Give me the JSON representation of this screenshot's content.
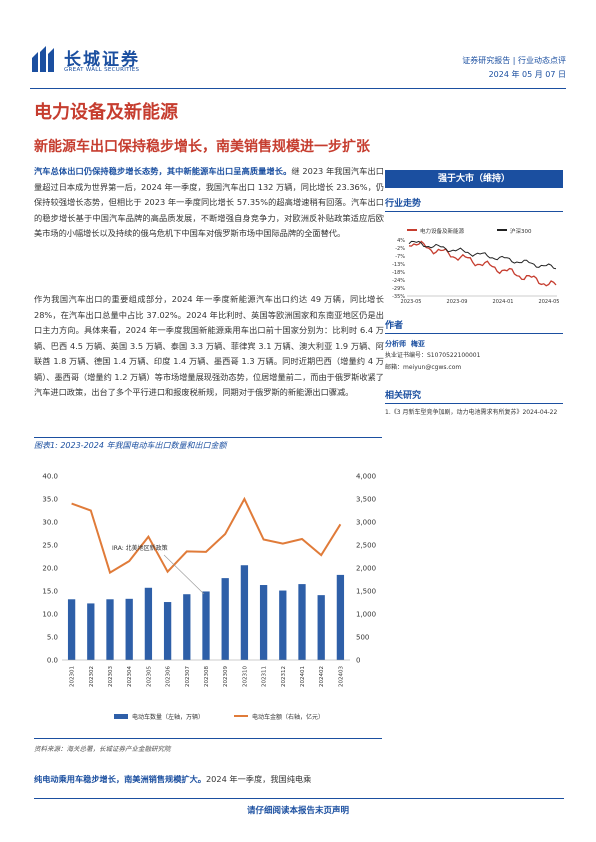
{
  "header": {
    "company_cn": "长城证券",
    "company_en": "GREAT WALL SECURITIES",
    "report_type": "证券研究报告 | 行业动态点评",
    "date": "2024 年 05 月 07 日"
  },
  "sector_title": "电力设备及新能源",
  "subtitle": "新能源车出口保持稳步增长，南美销售规模进一步扩张",
  "para1": {
    "lead": "汽车总体出口仍保持稳步增长态势，其中新能源车出口呈高质量增长。",
    "text": "继 2023 年我国汽车出口量超过日本成为世界第一后，2024 年一季度，我国汽车出口 132 万辆，同比增长 23.36%，仍保持较强增长态势，但相比于 2023 年一季度同比增长 57.35%的超高增速稍有回落。汽车出口的稳步增长基于中国汽车品牌的高品质发展，不断增强自身竞争力，对欧洲反补贴政策适应后欧美市场的小幅增长以及持续的俄乌危机下中国车对俄罗斯市场中国际品牌的全面替代。"
  },
  "para2": {
    "text": "作为我国汽车出口的重要组成部分，2024 年一季度新能源汽车出口约达 49 万辆，同比增长 28%，在汽车出口总量中占比 37.02%。2024 年比利时、英国等欧洲国家和东南亚地区仍是出口主力方向。具体来看，2024 年一季度我国新能源乘用车出口前十国家分别为：比利时 6.4 万辆、巴西 4.5 万辆、英国 3.5 万辆、泰国 3.3 万辆、菲律宾 3.1 万辆、澳大利亚 1.9 万辆、阿联酋 1.8 万辆、德国 1.4 万辆、印度 1.4 万辆、墨西哥 1.3 万辆。同时近期巴西（增量约 4 万辆）、墨西哥（增量约 1.2 万辆）等市场增量展现强劲态势，位居增量前二，而由于俄罗斯收紧了汽车进口政策，出台了多个平行进口和报废税新规，同期对于俄罗斯的新能源出口骤减。"
  },
  "para3": {
    "lead": "纯电动乘用车稳步增长，南美洲销售规模扩大。",
    "text": "2024 年一季度，我国纯电乘"
  },
  "sidebar": {
    "rating": "强于大市（维持）",
    "trend_title": "行业走势",
    "author_title": "作者",
    "analyst_label": "分析师",
    "analyst_name": "梅亚",
    "license": "执业证书编号：S1070522100001",
    "email": "邮箱：meiyun@cgws.com",
    "related_title": "相关研究",
    "related_item": "1.《3 月新车型竞争加剧，动力电池需求有所复苏》2024-04-22"
  },
  "mini_chart": {
    "legend": [
      "电力设备及新能源",
      "沪深300"
    ],
    "y_ticks": [
      "4%",
      "-2%",
      "-7%",
      "-13%",
      "-18%",
      "-24%",
      "-29%",
      "-35%"
    ],
    "x_ticks": [
      "2023-05",
      "2023-09",
      "2024-01",
      "2024-05"
    ],
    "colors": {
      "sector": "#c63d2f",
      "index": "#222222"
    }
  },
  "figure": {
    "title": "图表1: 2023-2024 年我国电动车出口数量和出口金额",
    "source": "资料来源：海关总署，长城证券产业金融研究院"
  },
  "chart_data": {
    "type": "bar",
    "categories": [
      "202301",
      "202302",
      "202303",
      "202304",
      "202305",
      "202306",
      "202307",
      "202308",
      "202309",
      "202310",
      "202311",
      "202312",
      "202401",
      "202402",
      "202403"
    ],
    "series": [
      {
        "name": "电动车数量（左轴，万辆）",
        "type": "bar",
        "axis": "left",
        "values": [
          13.2,
          12.3,
          13.2,
          13.3,
          15.7,
          12.6,
          14.3,
          14.9,
          17.8,
          20.6,
          16.3,
          15.1,
          16.5,
          14.1,
          18.5
        ]
      },
      {
        "name": "电动车金额（右轴，亿元）",
        "type": "line",
        "axis": "right",
        "values": [
          3400,
          3250,
          1900,
          2150,
          2680,
          1920,
          2360,
          2350,
          2740,
          3500,
          2620,
          2530,
          2630,
          2280,
          2950
        ]
      }
    ],
    "y_left": {
      "ticks": [
        "0.0",
        "5.0",
        "10.0",
        "15.0",
        "20.0",
        "25.0",
        "30.0",
        "35.0",
        "40.0"
      ],
      "lim": [
        0,
        40
      ]
    },
    "y_right": {
      "ticks": [
        "0",
        "500",
        "1,000",
        "1,500",
        "2,000",
        "2,500",
        "3,000",
        "3,500",
        "4,000"
      ],
      "lim": [
        0,
        4000
      ]
    },
    "annotation": "IRA: 北美地区新政策",
    "colors": {
      "bar": "#2e5fa8",
      "line": "#e07b39"
    },
    "legend_position": "bottom",
    "grid": false
  },
  "footer": "请仔细阅读本报告末页声明"
}
